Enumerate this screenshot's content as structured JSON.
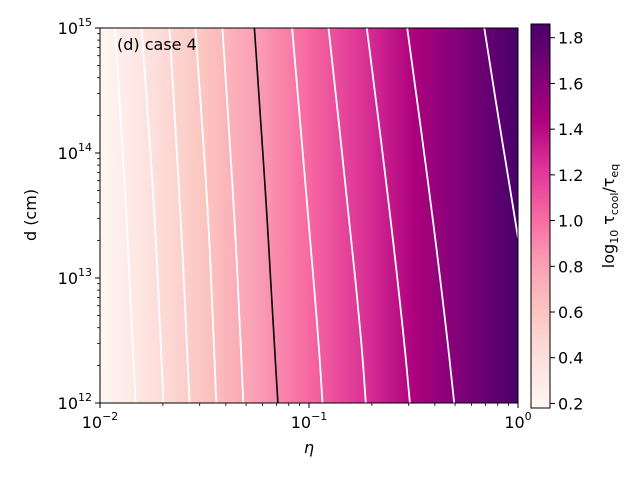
{
  "chart_data": {
    "type": "heatmap",
    "panel_label": "(d) case 4",
    "xlabel": "η",
    "ylabel": "d (cm)",
    "x_scale": "log",
    "y_scale": "log",
    "xlim": [
      0.01,
      1.0
    ],
    "ylim": [
      1000000000000.0,
      1000000000000000.0
    ],
    "x_ticks": [
      {
        "value": 0.01,
        "base": "10",
        "exp": "−2"
      },
      {
        "value": 0.1,
        "base": "10",
        "exp": "−1"
      },
      {
        "value": 1.0,
        "base": "10",
        "exp": "0"
      }
    ],
    "y_ticks": [
      {
        "value": 1000000000000.0,
        "base": "10",
        "exp": "12"
      },
      {
        "value": 10000000000000.0,
        "base": "10",
        "exp": "13"
      },
      {
        "value": 100000000000000.0,
        "base": "10",
        "exp": "14"
      },
      {
        "value": 1000000000000000.0,
        "base": "10",
        "exp": "15"
      }
    ],
    "colorbar": {
      "label": "log10 τcool/τeq",
      "label_main": "log",
      "label_sub": "10",
      "label_tau1": "τ",
      "label_tau1_sub": "cool",
      "label_tau2": "/τ",
      "label_tau2_sub": "eq",
      "range": [
        0.18,
        1.86
      ],
      "ticks": [
        0.2,
        0.4,
        0.6,
        0.8,
        1.0,
        1.2,
        1.4,
        1.6,
        1.8
      ],
      "tick_labels": [
        "0.2",
        "0.4",
        "0.6",
        "0.8",
        "1.0",
        "1.2",
        "1.4",
        "1.6",
        "1.8"
      ],
      "colormap": "RdPu",
      "stops": [
        "#fff7f3",
        "#fde0dd",
        "#fcc5c0",
        "#fa9fb5",
        "#f768a1",
        "#dd3497",
        "#ae017e",
        "#7a0177",
        "#49006a"
      ]
    },
    "field": {
      "description_model": "value varies mainly with eta, weakly with d",
      "contour_levels_white": [
        0.3,
        0.4,
        0.5,
        0.6,
        0.8,
        1.0,
        1.2,
        1.4,
        1.6,
        1.8
      ],
      "contour_level_black": 0.7
    },
    "contours": [
      {
        "color": "white",
        "points": [
          [
            0.0118,
            1000000000000000.0
          ],
          [
            0.0134,
            32000000000000.0
          ],
          [
            0.0143,
            3200000000000.0
          ],
          [
            0.0148,
            1000000000000.0
          ]
        ]
      },
      {
        "color": "white",
        "points": [
          [
            0.0158,
            1000000000000000.0
          ],
          [
            0.0183,
            32000000000000.0
          ],
          [
            0.0195,
            3200000000000.0
          ],
          [
            0.0201,
            1000000000000.0
          ]
        ]
      },
      {
        "color": "white",
        "points": [
          [
            0.0215,
            1000000000000000.0
          ],
          [
            0.0243,
            32000000000000.0
          ],
          [
            0.026,
            3200000000000.0
          ],
          [
            0.0268,
            1000000000000.0
          ]
        ]
      },
      {
        "color": "white",
        "points": [
          [
            0.0286,
            1000000000000000.0
          ],
          [
            0.033,
            32000000000000.0
          ],
          [
            0.035,
            3200000000000.0
          ],
          [
            0.036,
            1000000000000.0
          ]
        ]
      },
      {
        "color": "white",
        "points": [
          [
            0.0385,
            1000000000000000.0
          ],
          [
            0.044,
            32000000000000.0
          ],
          [
            0.047,
            3200000000000.0
          ],
          [
            0.0485,
            1000000000000.0
          ]
        ]
      },
      {
        "color": "black",
        "points": [
          [
            0.0548,
            1000000000000000.0
          ],
          [
            0.063,
            32000000000000.0
          ],
          [
            0.068,
            3200000000000.0
          ],
          [
            0.071,
            1000000000000.0
          ]
        ]
      },
      {
        "color": "white",
        "points": [
          [
            0.083,
            1000000000000000.0
          ],
          [
            0.099,
            32000000000000.0
          ],
          [
            0.111,
            3200000000000.0
          ],
          [
            0.116,
            1000000000000.0
          ]
        ]
      },
      {
        "color": "white",
        "points": [
          [
            0.124,
            1000000000000000.0
          ],
          [
            0.155,
            32000000000000.0
          ],
          [
            0.178,
            3200000000000.0
          ],
          [
            0.187,
            1000000000000.0
          ]
        ]
      },
      {
        "color": "white",
        "points": [
          [
            0.189,
            1000000000000000.0
          ],
          [
            0.245,
            32000000000000.0
          ],
          [
            0.285,
            3200000000000.0
          ],
          [
            0.304,
            1000000000000.0
          ]
        ]
      },
      {
        "color": "white",
        "points": [
          [
            0.295,
            1000000000000000.0
          ],
          [
            0.39,
            32000000000000.0
          ],
          [
            0.46,
            3200000000000.0
          ],
          [
            0.495,
            1000000000000.0
          ]
        ]
      },
      {
        "color": "white",
        "points": [
          [
            0.69,
            1000000000000000.0
          ],
          [
            0.81,
            180000000000000.0
          ],
          [
            0.92,
            50000000000000.0
          ],
          [
            1.0,
            21000000000000.0
          ]
        ]
      }
    ]
  }
}
